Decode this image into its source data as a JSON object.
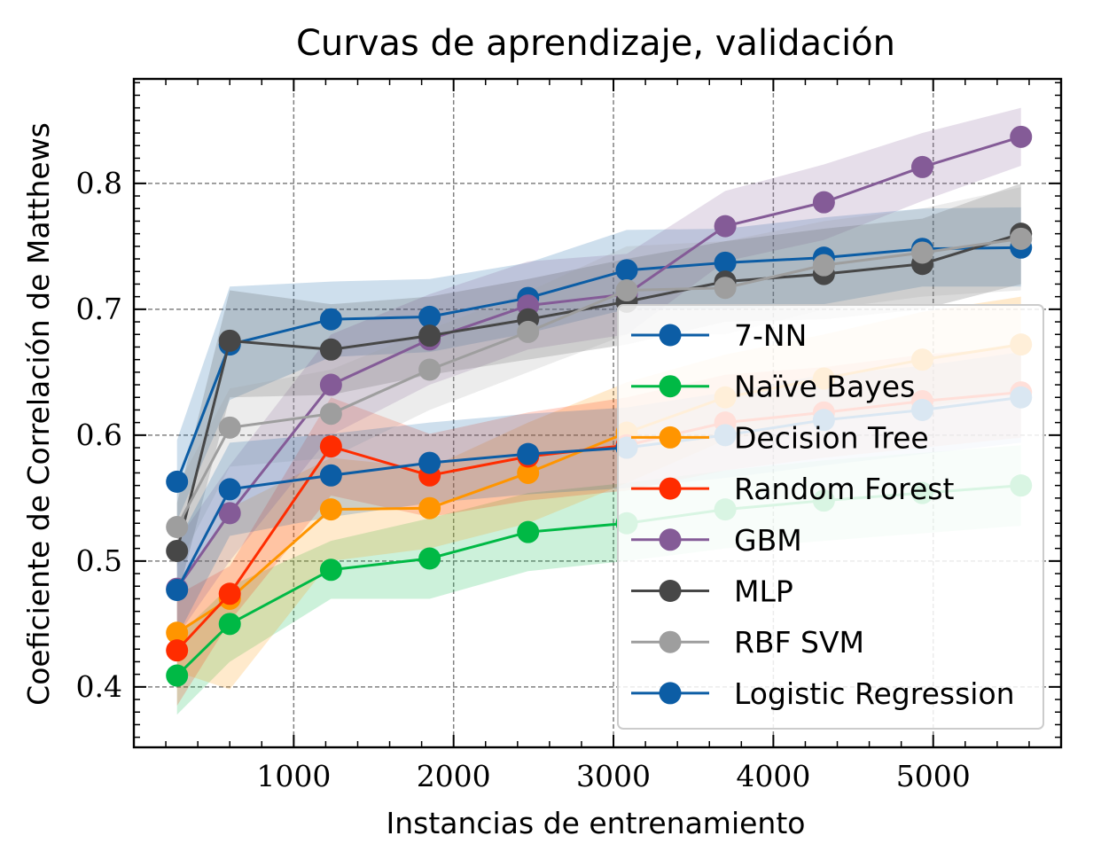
{
  "chart_data": {
    "type": "line",
    "title": "Curvas de aprendizaje, validación",
    "xlabel": "Instancias de entrenamiento",
    "ylabel": "Coeficiente de Correlación de Matthews",
    "xlim": [
      0,
      5800
    ],
    "ylim": [
      0.352,
      0.883
    ],
    "xticks": [
      1000,
      2000,
      3000,
      4000,
      5000
    ],
    "xtick_labels": [
      "1000",
      "2000",
      "3000",
      "4000",
      "5000"
    ],
    "yticks": [
      0.4,
      0.5,
      0.6,
      0.7,
      0.8
    ],
    "ytick_labels": [
      "0.4",
      "0.5",
      "0.6",
      "0.7",
      "0.8"
    ],
    "grid": true,
    "legend_position": "lower-right",
    "x": [
      270,
      600,
      1233,
      1850,
      2466,
      3083,
      3699,
      4316,
      4932,
      5549
    ],
    "series": [
      {
        "name": "7-NN",
        "color": "#0C5DA5",
        "values": [
          0.563,
          0.672,
          0.692,
          0.694,
          0.709,
          0.731,
          0.737,
          0.741,
          0.748,
          0.749
        ],
        "lower": [
          0.532,
          0.628,
          0.662,
          0.666,
          0.681,
          0.7,
          0.7,
          0.704,
          0.718,
          0.718
        ],
        "upper": [
          0.596,
          0.718,
          0.722,
          0.724,
          0.737,
          0.763,
          0.764,
          0.773,
          0.78,
          0.781
        ]
      },
      {
        "name": "Naïve Bayes",
        "color": "#00B945",
        "values": [
          0.409,
          0.45,
          0.493,
          0.502,
          0.523,
          0.53,
          0.541,
          0.548,
          0.554,
          0.56
        ],
        "lower": [
          0.378,
          0.42,
          0.47,
          0.47,
          0.492,
          0.5,
          0.51,
          0.516,
          0.522,
          0.528
        ],
        "upper": [
          0.44,
          0.48,
          0.516,
          0.534,
          0.554,
          0.562,
          0.572,
          0.58,
          0.586,
          0.592
        ]
      },
      {
        "name": "Decision Tree",
        "color": "#FF9500",
        "values": [
          0.443,
          0.47,
          0.541,
          0.542,
          0.57,
          0.602,
          0.63,
          0.645,
          0.66,
          0.672
        ],
        "lower": [
          0.412,
          0.398,
          0.5,
          0.51,
          0.53,
          0.562,
          0.596,
          0.61,
          0.622,
          0.634
        ],
        "upper": [
          0.474,
          0.542,
          0.582,
          0.574,
          0.61,
          0.642,
          0.664,
          0.68,
          0.698,
          0.71
        ]
      },
      {
        "name": "Random Forest",
        "color": "#FF2C00",
        "values": [
          0.429,
          0.474,
          0.591,
          0.568,
          0.583,
          0.592,
          0.61,
          0.618,
          0.627,
          0.634
        ],
        "lower": [
          0.385,
          0.452,
          0.552,
          0.535,
          0.548,
          0.556,
          0.572,
          0.582,
          0.59,
          0.598
        ],
        "upper": [
          0.473,
          0.496,
          0.63,
          0.601,
          0.618,
          0.63,
          0.648,
          0.654,
          0.664,
          0.67
        ]
      },
      {
        "name": "GBM",
        "color": "#845B97",
        "values": [
          0.478,
          0.538,
          0.64,
          0.676,
          0.703,
          0.712,
          0.766,
          0.785,
          0.813,
          0.837
        ],
        "lower": [
          0.44,
          0.5,
          0.6,
          0.64,
          0.668,
          0.68,
          0.738,
          0.755,
          0.786,
          0.814
        ],
        "upper": [
          0.516,
          0.576,
          0.68,
          0.712,
          0.738,
          0.744,
          0.794,
          0.815,
          0.84,
          0.86
        ]
      },
      {
        "name": "MLP",
        "color": "#474747",
        "values": [
          0.508,
          0.675,
          0.668,
          0.679,
          0.692,
          0.706,
          0.722,
          0.728,
          0.736,
          0.76
        ],
        "lower": [
          0.47,
          0.63,
          0.632,
          0.648,
          0.66,
          0.672,
          0.69,
          0.692,
          0.7,
          0.72
        ],
        "upper": [
          0.546,
          0.715,
          0.704,
          0.71,
          0.724,
          0.74,
          0.754,
          0.764,
          0.772,
          0.8
        ]
      },
      {
        "name": "RBF SVM",
        "color": "#9E9E9E",
        "values": [
          0.527,
          0.606,
          0.617,
          0.652,
          0.682,
          0.715,
          0.717,
          0.735,
          0.745,
          0.756
        ],
        "lower": [
          0.495,
          0.575,
          0.582,
          0.62,
          0.65,
          0.68,
          0.68,
          0.7,
          0.71,
          0.715
        ],
        "upper": [
          0.559,
          0.637,
          0.652,
          0.684,
          0.714,
          0.75,
          0.754,
          0.77,
          0.78,
          0.797
        ]
      },
      {
        "name": "Logistic Regression",
        "color": "#0C5DA5",
        "values": [
          0.477,
          0.557,
          0.568,
          0.578,
          0.585,
          0.59,
          0.6,
          0.612,
          0.62,
          0.63
        ],
        "lower": [
          0.44,
          0.52,
          0.535,
          0.546,
          0.553,
          0.558,
          0.566,
          0.576,
          0.585,
          0.594
        ],
        "upper": [
          0.514,
          0.594,
          0.601,
          0.61,
          0.617,
          0.622,
          0.634,
          0.648,
          0.655,
          0.666
        ]
      }
    ]
  }
}
